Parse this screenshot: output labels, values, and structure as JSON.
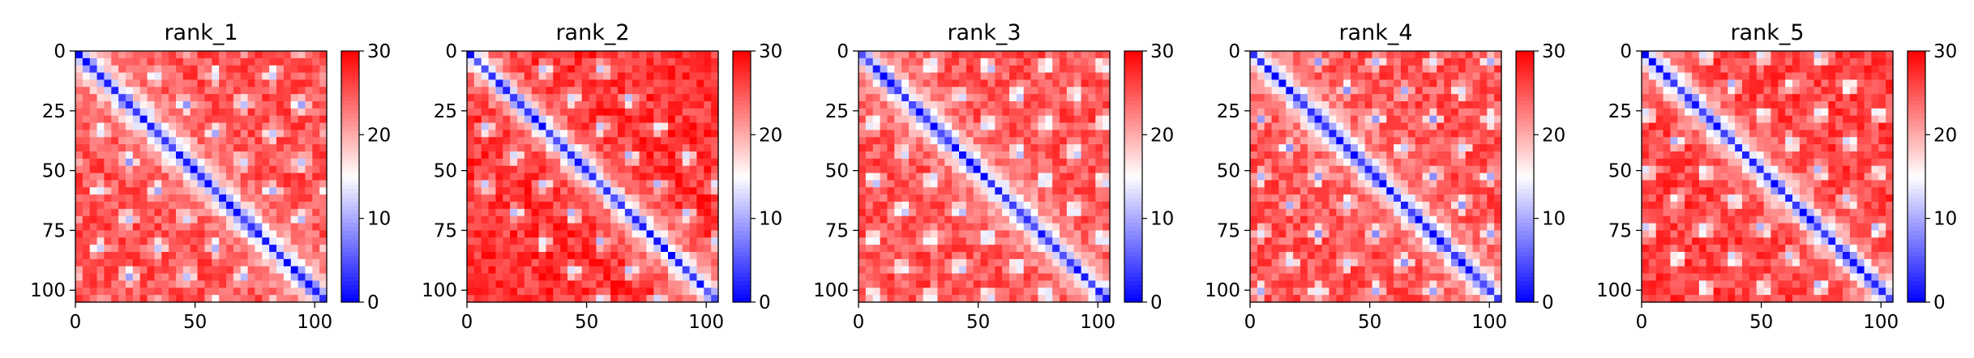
{
  "chart_data": [
    {
      "type": "heatmap",
      "title": "rank_1",
      "x_range": [
        0,
        105
      ],
      "y_range": [
        0,
        105
      ],
      "y_inverted": true,
      "x_ticks": [
        0,
        50,
        100
      ],
      "y_ticks": [
        0,
        25,
        50,
        75,
        100
      ],
      "colorbar": {
        "range": [
          0,
          30
        ],
        "ticks": [
          0,
          10,
          20,
          30
        ],
        "colormap": "bwr"
      },
      "diagonal_value": 2,
      "background_value": 25,
      "contact_period": 24,
      "contact_offsets": [
        24,
        48,
        72,
        96
      ]
    },
    {
      "type": "heatmap",
      "title": "rank_2",
      "x_range": [
        0,
        105
      ],
      "y_range": [
        0,
        105
      ],
      "y_inverted": true,
      "x_ticks": [
        0,
        50,
        100
      ],
      "y_ticks": [
        0,
        25,
        50,
        75,
        100
      ],
      "colorbar": {
        "range": [
          0,
          30
        ],
        "ticks": [
          0,
          10,
          20,
          30
        ],
        "colormap": "bwr"
      },
      "diagonal_value": 3,
      "background_value": 27,
      "contact_period": 24,
      "contact_offsets": [
        24,
        48
      ]
    },
    {
      "type": "heatmap",
      "title": "rank_3",
      "x_range": [
        0,
        105
      ],
      "y_range": [
        0,
        105
      ],
      "y_inverted": true,
      "x_ticks": [
        0,
        50,
        100
      ],
      "y_ticks": [
        0,
        25,
        50,
        75,
        100
      ],
      "colorbar": {
        "range": [
          0,
          30
        ],
        "ticks": [
          0,
          10,
          20,
          30
        ],
        "colormap": "bwr"
      },
      "diagonal_value": 2,
      "background_value": 25,
      "contact_period": 24,
      "contact_offsets": [
        24,
        48,
        72,
        96
      ]
    },
    {
      "type": "heatmap",
      "title": "rank_4",
      "x_range": [
        0,
        105
      ],
      "y_range": [
        0,
        105
      ],
      "y_inverted": true,
      "x_ticks": [
        0,
        50,
        100
      ],
      "y_ticks": [
        0,
        25,
        50,
        75,
        100
      ],
      "colorbar": {
        "range": [
          0,
          30
        ],
        "ticks": [
          0,
          10,
          20,
          30
        ],
        "colormap": "bwr"
      },
      "diagonal_value": 2,
      "background_value": 25,
      "contact_period": 24,
      "contact_offsets": [
        24,
        48,
        72,
        96
      ]
    },
    {
      "type": "heatmap",
      "title": "rank_5",
      "x_range": [
        0,
        105
      ],
      "y_range": [
        0,
        105
      ],
      "y_inverted": true,
      "x_ticks": [
        0,
        50,
        100
      ],
      "y_ticks": [
        0,
        25,
        50,
        75,
        100
      ],
      "colorbar": {
        "range": [
          0,
          30
        ],
        "ticks": [
          0,
          10,
          20,
          30
        ],
        "colormap": "bwr"
      },
      "diagonal_value": 2,
      "background_value": 26,
      "contact_period": 24,
      "contact_offsets": [
        24,
        48,
        72
      ]
    }
  ]
}
